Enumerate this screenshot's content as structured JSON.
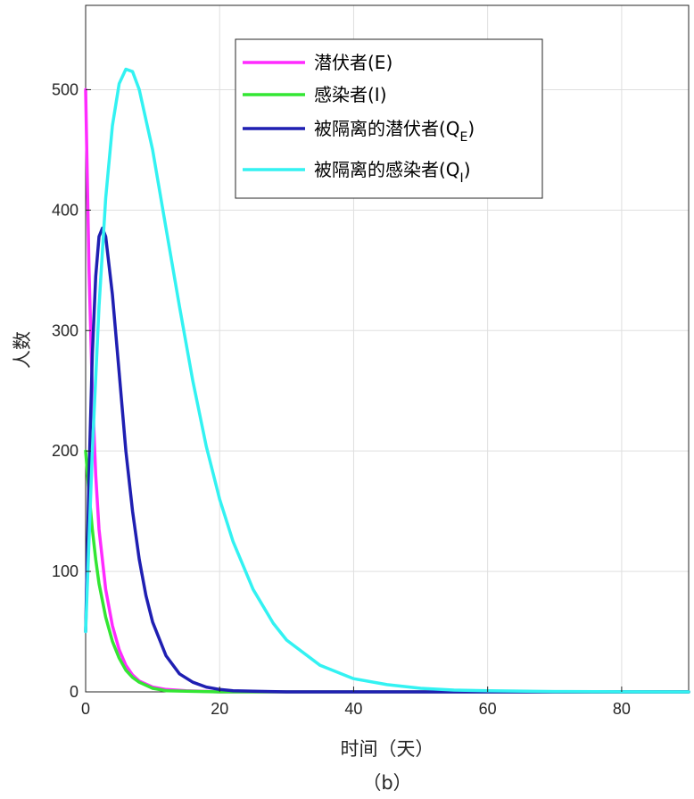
{
  "chart_data": {
    "type": "line",
    "title": "",
    "xlabel": "时间（天）",
    "ylabel": "人数",
    "caption": "（b）",
    "xlim": [
      0,
      90
    ],
    "ylim": [
      0,
      570
    ],
    "xticks": [
      0,
      20,
      40,
      60,
      80
    ],
    "yticks": [
      0,
      100,
      200,
      300,
      400,
      500
    ],
    "grid": true,
    "legend_position": "top-center",
    "series": [
      {
        "name": "潜伏者(E)",
        "name_main": "潜伏者(E",
        "name_sub": "",
        "name_close": ")",
        "color": "#ff2bff",
        "x": [
          0,
          0.5,
          1,
          1.5,
          2,
          3,
          4,
          5,
          6,
          7,
          8,
          10,
          12,
          15,
          20,
          30,
          90
        ],
        "y": [
          500,
          350,
          250,
          180,
          135,
          85,
          55,
          35,
          22,
          14,
          9,
          4,
          2,
          1,
          0,
          0,
          0
        ]
      },
      {
        "name": "感染者(I)",
        "name_main": "感染者(I",
        "name_sub": "",
        "name_close": ")",
        "color": "#33e633",
        "x": [
          0,
          0.5,
          1,
          1.5,
          2,
          3,
          4,
          5,
          6,
          7,
          8,
          10,
          12,
          15,
          20,
          30,
          90
        ],
        "y": [
          200,
          165,
          135,
          110,
          90,
          62,
          42,
          28,
          18,
          12,
          8,
          3,
          1,
          0.5,
          0,
          0,
          0
        ]
      },
      {
        "name": "被隔离的潜伏者(QE)",
        "name_main": "被隔离的潜伏者(Q",
        "name_sub": "E",
        "name_close": ")",
        "color": "#1f1fb2",
        "x": [
          0,
          0.5,
          1,
          1.5,
          2,
          2.5,
          3,
          4,
          5,
          6,
          7,
          8,
          9,
          10,
          12,
          14,
          16,
          18,
          20,
          22,
          25,
          30,
          40,
          90
        ],
        "y": [
          50,
          180,
          280,
          345,
          378,
          385,
          378,
          330,
          265,
          200,
          150,
          110,
          80,
          58,
          30,
          15,
          8,
          4,
          2,
          1,
          0.5,
          0,
          0,
          0
        ]
      },
      {
        "name": "被隔离的感染者(QI)",
        "name_main": "被隔离的感染者(Q",
        "name_sub": "I",
        "name_close": ")",
        "color": "#33f2f2",
        "x": [
          0,
          1,
          2,
          3,
          4,
          5,
          6,
          7,
          8,
          10,
          12,
          14,
          16,
          18,
          20,
          22,
          25,
          28,
          30,
          35,
          40,
          45,
          50,
          55,
          60,
          70,
          80,
          90
        ],
        "y": [
          50,
          200,
          320,
          410,
          470,
          505,
          517,
          515,
          500,
          450,
          385,
          320,
          258,
          204,
          160,
          125,
          85,
          57,
          43,
          22,
          11,
          6,
          3,
          1.5,
          1,
          0.3,
          0.1,
          0
        ]
      }
    ]
  }
}
